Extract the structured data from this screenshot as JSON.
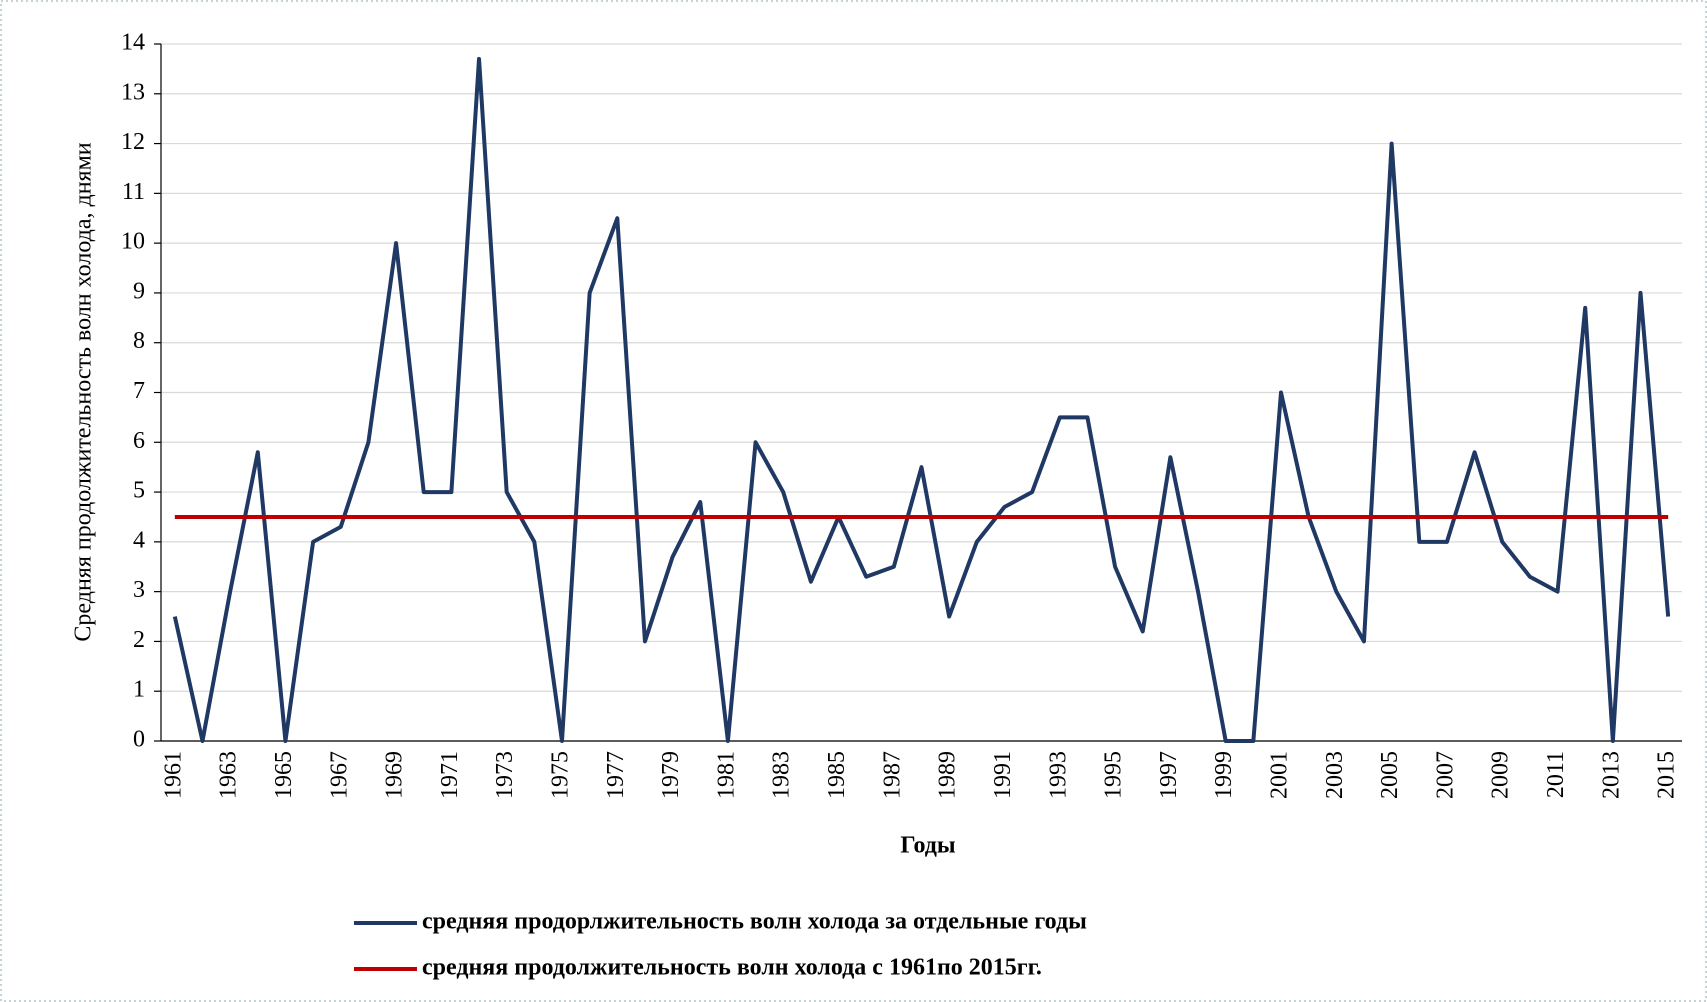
{
  "chart_data": {
    "type": "line",
    "y_label": "Средняя продолжительность волн холода, днями",
    "x_label": "Годы",
    "categories": [
      "1961",
      null,
      "1963",
      null,
      "1965",
      null,
      "1967",
      null,
      "1969",
      null,
      "1971",
      null,
      "1973",
      null,
      "1975",
      null,
      "1977",
      null,
      "1979",
      null,
      "1981",
      null,
      "1983",
      null,
      "1985",
      null,
      "1987",
      null,
      "1989",
      null,
      "1991",
      null,
      "1993",
      null,
      "1995",
      null,
      "1997",
      null,
      "1999",
      null,
      "2001",
      null,
      "2003",
      null,
      "2005",
      null,
      "2007",
      null,
      "2009",
      null,
      "2011",
      null,
      "2013",
      null,
      "2015"
    ],
    "series": [
      {
        "name": "средняя продорлжительность волн холода за отдельные годы",
        "color": "#1f3864",
        "values": [
          2.5,
          0,
          3,
          5.8,
          0,
          4,
          4.3,
          6,
          10,
          5,
          5,
          13.7,
          5,
          4,
          0,
          9,
          10.5,
          2,
          3.7,
          4.8,
          0,
          6,
          5,
          3.2,
          4.5,
          3.3,
          3.5,
          5.5,
          2.5,
          4,
          4.7,
          5,
          6.5,
          6.5,
          3.5,
          2.2,
          5.7,
          3,
          0,
          0,
          7,
          4.5,
          3,
          2,
          12,
          4,
          4,
          5.8,
          4,
          3.3,
          3,
          8.7,
          0,
          9,
          2.5
        ]
      },
      {
        "name": "средняя продолжительность волн холода с 1961по 2015гг.",
        "color": "#c00000",
        "values": [
          4.5,
          4.5,
          4.5,
          4.5,
          4.5,
          4.5,
          4.5,
          4.5,
          4.5,
          4.5,
          4.5,
          4.5,
          4.5,
          4.5,
          4.5,
          4.5,
          4.5,
          4.5,
          4.5,
          4.5,
          4.5,
          4.5,
          4.5,
          4.5,
          4.5,
          4.5,
          4.5,
          4.5,
          4.5,
          4.5,
          4.5,
          4.5,
          4.5,
          4.5,
          4.5,
          4.5,
          4.5,
          4.5,
          4.5,
          4.5,
          4.5,
          4.5,
          4.5,
          4.5,
          4.5,
          4.5,
          4.5,
          4.5,
          4.5,
          4.5,
          4.5,
          4.5,
          4.5,
          4.5,
          4.5
        ]
      }
    ],
    "ylim": [
      0,
      14
    ],
    "yticks": [
      0,
      1,
      2,
      3,
      4,
      5,
      6,
      7,
      8,
      9,
      10,
      11,
      12,
      13,
      14
    ],
    "grid": true,
    "legend": "bottom"
  }
}
